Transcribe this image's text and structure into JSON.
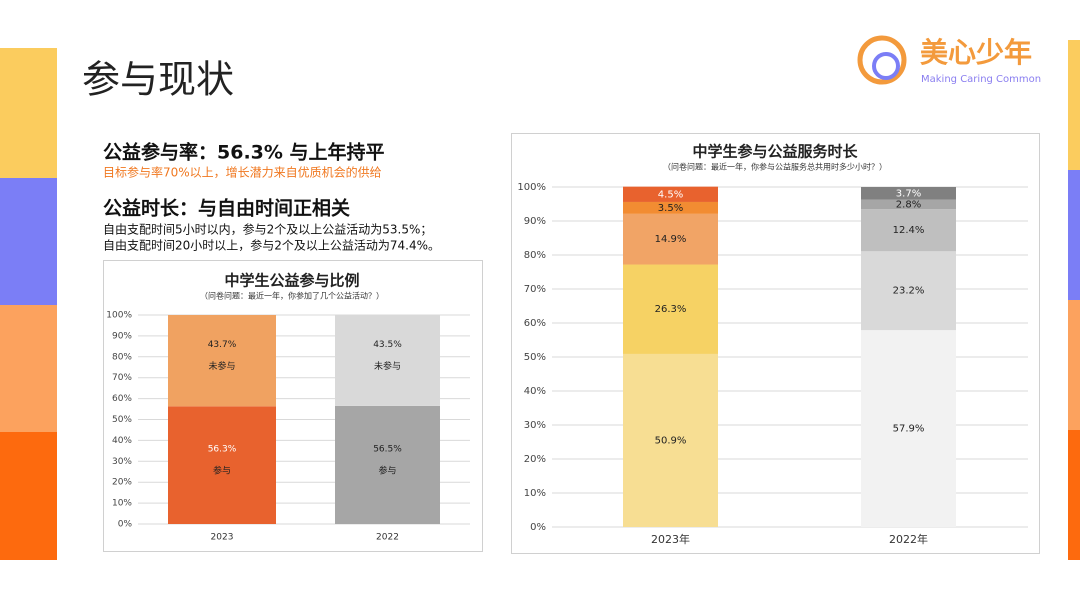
{
  "slide": {
    "title": "参与现状",
    "heading1": "公益参与率：56.3% 与上年持平",
    "note1": "目标参与率70%以上，增长潜力来自优质机会的供给",
    "heading2": "公益时长：与自由时间正相关",
    "lines": [
      "自由支配时间5小时以内，参与2个及以上公益活动为53.5%；",
      "自由支配时间20小时以上，参与2个及以上公益活动为74.4%。"
    ],
    "logo": {
      "name": "美心少年",
      "tagline": "Making Caring Common"
    }
  },
  "chart_data": [
    {
      "type": "stacked-bar",
      "title": "中学生公益参与比例",
      "subtitle": "（问卷问题：最近一年，你参加了几个公益活动？）",
      "categories": [
        "2023",
        "2022"
      ],
      "series": [
        {
          "name": "参与",
          "colors": [
            "#e8622e",
            "#a6a6a6"
          ],
          "values": [
            56.3,
            56.5
          ],
          "value_labels": [
            "56.3%",
            "56.5%"
          ]
        },
        {
          "name": "未参与",
          "colors": [
            "#f0a261",
            "#d9d9d9"
          ],
          "values": [
            43.7,
            43.5
          ],
          "value_labels": [
            "43.7%",
            "43.5%"
          ]
        }
      ],
      "ylim": [
        0,
        100
      ],
      "yticks": [
        {
          "value": 0,
          "label": "0%"
        },
        {
          "value": 10,
          "label": "10%"
        },
        {
          "value": 20,
          "label": "20%"
        },
        {
          "value": 30,
          "label": "30%"
        },
        {
          "value": 40,
          "label": "40%"
        },
        {
          "value": 50,
          "label": "50%"
        },
        {
          "value": 60,
          "label": "60%"
        },
        {
          "value": 70,
          "label": "70%"
        },
        {
          "value": 80,
          "label": "80%"
        },
        {
          "value": 90,
          "label": "90%"
        },
        {
          "value": 100,
          "label": "100%"
        }
      ],
      "grid": true
    },
    {
      "type": "stacked-bar",
      "title": "中学生参与公益服务时长",
      "subtitle": "（问卷问题：最近一年，你参与公益服务总共用时多少小时？）",
      "categories": [
        "2023年",
        "2022年"
      ],
      "series": [
        {
          "colors": [
            "#f7de93",
            "#f2f2f2"
          ],
          "values": [
            50.9,
            57.9
          ],
          "value_labels": [
            "50.9%",
            "57.9%"
          ]
        },
        {
          "colors": [
            "#f6d264",
            "#d9d9d9"
          ],
          "values": [
            26.3,
            23.2
          ],
          "value_labels": [
            "26.3%",
            "23.2%"
          ]
        },
        {
          "colors": [
            "#f1a466",
            "#bfbfbf"
          ],
          "values": [
            14.9,
            12.4
          ],
          "value_labels": [
            "14.9%",
            "12.4%"
          ]
        },
        {
          "colors": [
            "#f28c32",
            "#a6a6a6"
          ],
          "values": [
            3.5,
            2.8
          ],
          "value_labels": [
            "3.5%",
            "2.8%"
          ]
        },
        {
          "colors": [
            "#e8622e",
            "#808080"
          ],
          "values": [
            4.5,
            3.7
          ],
          "value_labels": [
            "4.5%",
            "3.7%"
          ]
        }
      ],
      "ylim": [
        0,
        100
      ],
      "yticks": [
        {
          "value": 0,
          "label": "0%"
        },
        {
          "value": 10,
          "label": "10%"
        },
        {
          "value": 20,
          "label": "20%"
        },
        {
          "value": 30,
          "label": "30%"
        },
        {
          "value": 40,
          "label": "40%"
        },
        {
          "value": 50,
          "label": "50%"
        },
        {
          "value": 60,
          "label": "60%"
        },
        {
          "value": 70,
          "label": "70%"
        },
        {
          "value": 80,
          "label": "80%"
        },
        {
          "value": 90,
          "label": "90%"
        },
        {
          "value": 100,
          "label": "100%"
        }
      ],
      "grid": true
    }
  ]
}
